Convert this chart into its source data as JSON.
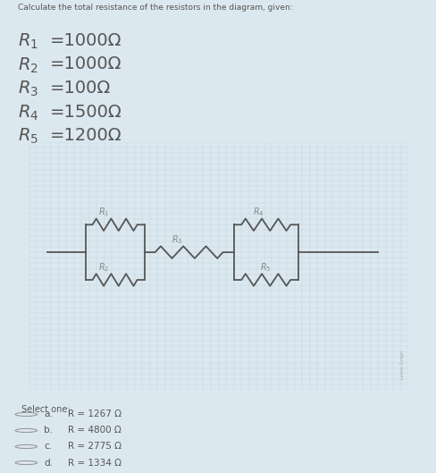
{
  "bg_color": "#dce8ef",
  "graph_bg": "#e4eef4",
  "grid_color": "#b8d0df",
  "line_color": "#555555",
  "text_color": "#555555",
  "label_color": "#888888",
  "white": "#ffffff",
  "title_text": "Calculate the total resistance of the resistors in the diagram, given:",
  "r_labels": [
    "R_1",
    "R_2",
    "R_3",
    "R_4",
    "R_5"
  ],
  "r_values": [
    "=1000Ω",
    "=1000Ω",
    "=100Ω",
    "=1500Ω",
    "=1200Ω"
  ],
  "select_text": "Select one:",
  "options": [
    [
      "a.",
      "R = 1267 Ω"
    ],
    [
      "b.",
      "R = 4800 Ω"
    ],
    [
      "c.",
      "R = 2775 Ω"
    ],
    [
      "d.",
      "R = 1334 Ω"
    ]
  ]
}
